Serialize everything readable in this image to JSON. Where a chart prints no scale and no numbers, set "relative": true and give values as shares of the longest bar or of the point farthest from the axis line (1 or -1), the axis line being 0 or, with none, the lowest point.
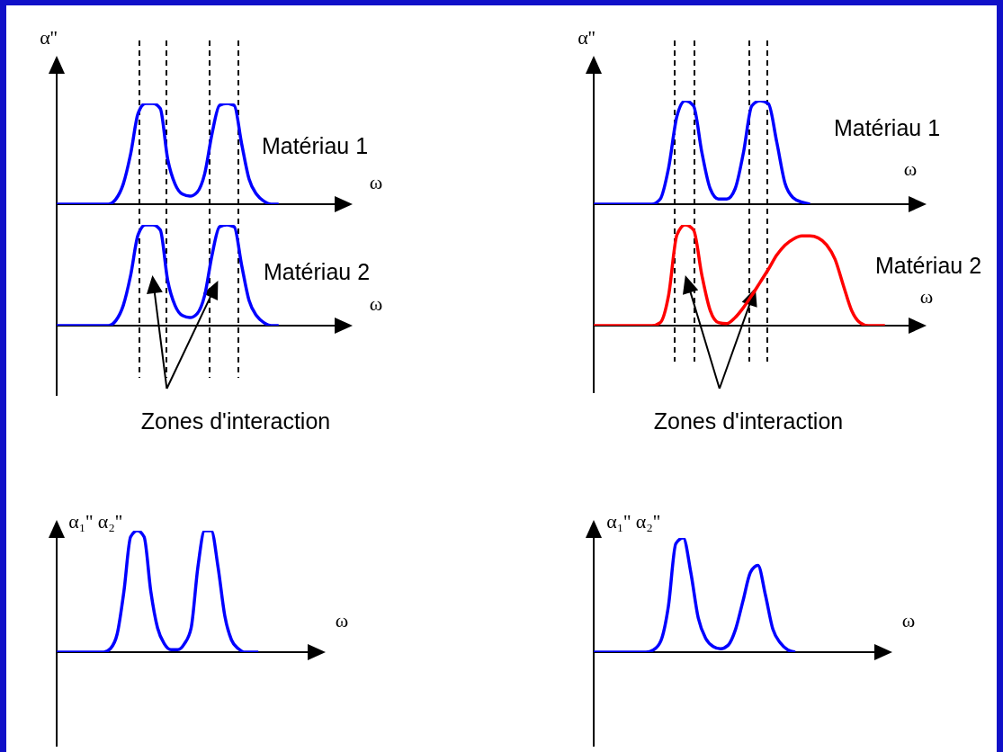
{
  "chart_data": [
    {
      "type": "line",
      "relative": true,
      "title": "Matériau 1",
      "xlabel": "ω",
      "ylabel": "α''",
      "categories": [
        null,
        null,
        null,
        null,
        null,
        null,
        null,
        null,
        null,
        null,
        null,
        null,
        null,
        null,
        null,
        null,
        null,
        null,
        null,
        null,
        null,
        null,
        null,
        null,
        null,
        null,
        null,
        null,
        null,
        null,
        null,
        null,
        null,
        null,
        null,
        null,
        null,
        null,
        null,
        null,
        null
      ],
      "series": [
        {
          "color": "#0000ff",
          "values": [
            0,
            0,
            0,
            0,
            0,
            0,
            0,
            0,
            0.05,
            0.2,
            0.5,
            0.9,
            1,
            1,
            0.95,
            0.45,
            0.2,
            0.1,
            0.08,
            0.12,
            0.3,
            0.7,
            0.98,
            1,
            0.98,
            0.6,
            0.25,
            0.1,
            0.03,
            0,
            0,
            null,
            null,
            null,
            null,
            null,
            null,
            null,
            null,
            null,
            null
          ]
        }
      ]
    },
    {
      "type": "line",
      "relative": true,
      "title": "Matériau 2",
      "xlabel": "ω",
      "annotations": [
        "Zones d'interaction"
      ],
      "categories": [
        null,
        null,
        null,
        null,
        null,
        null,
        null,
        null,
        null,
        null,
        null,
        null,
        null,
        null,
        null,
        null,
        null,
        null,
        null,
        null,
        null,
        null,
        null,
        null,
        null,
        null,
        null,
        null,
        null,
        null,
        null,
        null,
        null,
        null,
        null,
        null,
        null,
        null,
        null,
        null,
        null
      ],
      "series": [
        {
          "color": "#0000ff",
          "values": [
            0,
            0,
            0,
            0,
            0,
            0,
            0,
            0,
            0.05,
            0.2,
            0.5,
            0.9,
            1,
            1,
            0.95,
            0.45,
            0.2,
            0.1,
            0.08,
            0.12,
            0.3,
            0.7,
            0.98,
            1,
            0.98,
            0.6,
            0.25,
            0.1,
            0.03,
            0,
            0,
            null,
            null,
            null,
            null,
            null,
            null,
            null,
            null,
            null,
            null
          ]
        }
      ]
    },
    {
      "type": "line",
      "relative": true,
      "title": "Matériau 1",
      "xlabel": "ω",
      "ylabel": "α''",
      "categories": [
        null,
        null,
        null,
        null,
        null,
        null,
        null,
        null,
        null,
        null,
        null,
        null,
        null,
        null,
        null,
        null,
        null,
        null,
        null,
        null,
        null,
        null,
        null,
        null,
        null,
        null,
        null,
        null,
        null,
        null,
        null,
        null,
        null,
        null,
        null,
        null,
        null,
        null,
        null,
        null,
        null
      ],
      "series": [
        {
          "color": "#0000ff",
          "values": [
            0,
            0,
            0,
            0,
            0,
            0,
            0,
            0,
            0.05,
            0.35,
            0.85,
            1,
            0.95,
            0.5,
            0.15,
            0.05,
            0.05,
            0.15,
            0.5,
            0.95,
            1,
            0.97,
            0.6,
            0.2,
            0.06,
            0.02,
            0,
            null,
            null,
            null,
            null,
            null,
            null,
            null,
            null,
            null,
            null,
            null,
            null,
            null,
            null
          ]
        }
      ]
    },
    {
      "type": "line",
      "relative": true,
      "title": "Matériau 2",
      "xlabel": "ω",
      "annotations": [
        "Zones d'interaction"
      ],
      "categories": [
        null,
        null,
        null,
        null,
        null,
        null,
        null,
        null,
        null,
        null,
        null,
        null,
        null,
        null,
        null,
        null,
        null,
        null,
        null,
        null,
        null,
        null,
        null,
        null,
        null,
        null,
        null,
        null,
        null,
        null,
        null,
        null,
        null,
        null,
        null,
        null,
        null,
        null,
        null,
        null,
        null
      ],
      "series": [
        {
          "color": "#ff0000",
          "values": [
            0,
            0,
            0,
            0,
            0,
            0,
            0,
            0,
            0.03,
            0.3,
            0.9,
            1,
            0.95,
            0.5,
            0.15,
            0.03,
            0.02,
            0.08,
            0.18,
            0.3,
            0.43,
            0.56,
            0.7,
            0.8,
            0.86,
            0.89,
            0.89,
            0.87,
            0.8,
            0.66,
            0.4,
            0.15,
            0.03,
            0,
            0,
            0,
            null,
            null,
            null,
            null,
            null
          ]
        }
      ]
    },
    {
      "type": "line",
      "relative": true,
      "xlabel": "ω",
      "ylabel": "α₁'' α₂''",
      "categories": [
        null,
        null,
        null,
        null,
        null,
        null,
        null,
        null,
        null,
        null,
        null,
        null,
        null,
        null,
        null,
        null,
        null,
        null,
        null,
        null,
        null,
        null,
        null,
        null,
        null,
        null,
        null,
        null,
        null,
        null,
        null,
        null,
        null,
        null,
        null,
        null,
        null,
        null,
        null,
        null,
        null
      ],
      "series": [
        {
          "color": "#0000ff",
          "values": [
            0,
            0,
            0,
            0,
            0,
            0,
            0,
            0,
            0.03,
            0.15,
            0.5,
            0.95,
            1,
            0.95,
            0.5,
            0.2,
            0.07,
            0.02,
            0.02,
            0.07,
            0.2,
            0.7,
            1,
            1,
            0.7,
            0.3,
            0.1,
            0.03,
            0,
            0,
            0,
            null,
            null,
            null,
            null,
            null,
            null,
            null,
            null,
            null,
            null
          ]
        }
      ]
    },
    {
      "type": "line",
      "relative": true,
      "xlabel": "ω",
      "ylabel": "α₁'' α₂''",
      "categories": [
        null,
        null,
        null,
        null,
        null,
        null,
        null,
        null,
        null,
        null,
        null,
        null,
        null,
        null,
        null,
        null,
        null,
        null,
        null,
        null,
        null,
        null,
        null,
        null,
        null,
        null,
        null,
        null,
        null,
        null,
        null,
        null,
        null,
        null,
        null,
        null,
        null,
        null,
        null,
        null,
        null
      ],
      "series": [
        {
          "color": "#0000ff",
          "values": [
            0,
            0,
            0,
            0,
            0,
            0,
            0,
            0,
            0.02,
            0.1,
            0.4,
            0.95,
            1,
            0.7,
            0.3,
            0.12,
            0.05,
            0.03,
            0.06,
            0.2,
            0.45,
            0.7,
            0.76,
            0.5,
            0.2,
            0.08,
            0.02,
            0,
            null,
            null,
            null,
            null,
            null,
            null,
            null,
            null,
            null,
            null,
            null,
            null,
            null
          ]
        }
      ]
    }
  ]
}
